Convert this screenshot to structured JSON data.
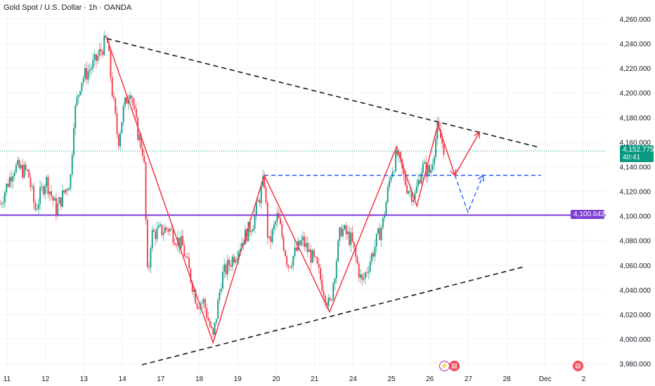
{
  "header": {
    "title": "Gold Spot / U.S. Dollar · 1h · OANDA"
  },
  "colors": {
    "up": "#089981",
    "down": "#f23645",
    "pattern": "#f23645",
    "projection": "#2962ff",
    "level": "#7e3ed6",
    "trend": "#131722",
    "grid": "#f0f3fa"
  },
  "price_badge": {
    "value": "4,152.775",
    "countdown": "40:41"
  },
  "level_badge": {
    "value": "4,100.643"
  },
  "events": [
    {
      "icon": "lightning-icon"
    },
    {
      "icon": "us-flag-icon"
    },
    {
      "icon": "us-flag-icon"
    }
  ],
  "chart_data": {
    "type": "candlestick",
    "title": "Gold Spot / U.S. Dollar · 1h · OANDA",
    "ylim": [
      3975,
      4270
    ],
    "y_ticks": [
      "4,260.000",
      "4,240.000",
      "4,220.000",
      "4,200.000",
      "4,180.000",
      "4,160.000",
      "4,140.000",
      "4,120.000",
      "4,100.000",
      "4,080.000",
      "4,060.000",
      "4,040.000",
      "4,020.000",
      "4,000.000",
      "3,980.000"
    ],
    "y_tick_values": [
      4260,
      4240,
      4220,
      4200,
      4180,
      4160,
      4140,
      4120,
      4100,
      4080,
      4060,
      4040,
      4020,
      4000,
      3980
    ],
    "x_ticks": [
      "11",
      "12",
      "13",
      "14",
      "17",
      "18",
      "19",
      "20",
      "21",
      "24",
      "25",
      "26",
      "27",
      "28",
      "Dec",
      "2"
    ],
    "current_price": 4152.775,
    "horizontal_level": 4100.643,
    "price_path": [
      [
        -0.18,
        4110
      ],
      [
        0.18,
        4140
      ],
      [
        0.55,
        4135
      ],
      [
        0.73,
        4105
      ],
      [
        1.01,
        4130
      ],
      [
        1.28,
        4105
      ],
      [
        1.65,
        4130
      ],
      [
        1.74,
        4180
      ],
      [
        1.92,
        4210
      ],
      [
        2.29,
        4225
      ],
      [
        2.6,
        4244
      ],
      [
        2.74,
        4200
      ],
      [
        2.89,
        4160
      ],
      [
        3.02,
        4185
      ],
      [
        3.2,
        4205
      ],
      [
        3.38,
        4170
      ],
      [
        3.56,
        4150
      ],
      [
        3.66,
        4045
      ],
      [
        3.75,
        4085
      ],
      [
        4.2,
        4090
      ],
      [
        4.57,
        4075
      ],
      [
        4.94,
        4030
      ],
      [
        5.12,
        4030
      ],
      [
        5.36,
        4000
      ],
      [
        5.58,
        4050
      ],
      [
        5.94,
        4070
      ],
      [
        6.4,
        4095
      ],
      [
        6.69,
        4130
      ],
      [
        6.8,
        4075
      ],
      [
        7.04,
        4100
      ],
      [
        7.31,
        4060
      ],
      [
        7.68,
        4080
      ],
      [
        8.04,
        4060
      ],
      [
        8.39,
        4025
      ],
      [
        8.68,
        4090
      ],
      [
        8.96,
        4080
      ],
      [
        9.23,
        4045
      ],
      [
        9.51,
        4070
      ],
      [
        9.78,
        4095
      ],
      [
        9.98,
        4135
      ],
      [
        10.15,
        4150
      ],
      [
        10.38,
        4125
      ],
      [
        10.6,
        4115
      ],
      [
        10.79,
        4140
      ],
      [
        11.01,
        4135
      ],
      [
        11.19,
        4170
      ],
      [
        11.37,
        4155
      ]
    ],
    "pattern_zigzag": [
      [
        2.6,
        4244
      ],
      [
        5.36,
        3997
      ],
      [
        6.69,
        4133
      ],
      [
        8.39,
        4022
      ],
      [
        10.13,
        4156
      ],
      [
        10.66,
        4108
      ],
      [
        11.21,
        4174.5
      ],
      [
        11.65,
        4133
      ],
      [
        12.29,
        4168
      ]
    ],
    "projection_zigzag": [
      [
        11.65,
        4133
      ],
      [
        11.99,
        4103
      ],
      [
        12.38,
        4133
      ]
    ],
    "neckline": [
      [
        6.69,
        4133
      ],
      [
        13.89,
        4133
      ]
    ],
    "upper_trendline": [
      [
        2.6,
        4244
      ],
      [
        13.8,
        4156
      ]
    ],
    "lower_trendline": [
      [
        3.51,
        3979
      ],
      [
        13.49,
        4059
      ]
    ]
  }
}
